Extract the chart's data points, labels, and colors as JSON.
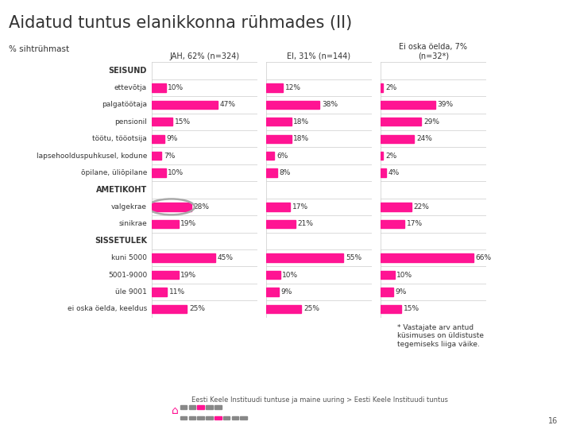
{
  "title": "Aidatud tuntus elanikkonna rühmades (II)",
  "subtitle": "% sihtrühmast",
  "col_headers": [
    "JAH, 62% (n=324)",
    "EI, 31% (n=144)",
    "Ei oska öelda, 7%\n(n=32*)"
  ],
  "categories": [
    "SEISUND",
    "ettevõtja",
    "palgatöötaja",
    "pensionil",
    "töötu, tööotsija",
    "lapsehoolduspuhkusel, kodune",
    "õpilane, üliõpilane",
    "AMETIKOHT",
    "valgekrae",
    "sinikrae",
    "SISSETULEK",
    "kuni 5000",
    "5001-9000",
    "üle 9001",
    "ei oska öelda, keeldus"
  ],
  "is_header": [
    true,
    false,
    false,
    false,
    false,
    false,
    false,
    true,
    false,
    false,
    true,
    false,
    false,
    false,
    false
  ],
  "col1_values": [
    null,
    10,
    47,
    15,
    9,
    7,
    10,
    null,
    28,
    19,
    null,
    45,
    19,
    11,
    25
  ],
  "col2_values": [
    null,
    12,
    38,
    18,
    18,
    6,
    8,
    null,
    17,
    21,
    null,
    55,
    10,
    9,
    25
  ],
  "col3_values": [
    null,
    2,
    39,
    29,
    24,
    2,
    4,
    null,
    22,
    17,
    null,
    66,
    10,
    9,
    15
  ],
  "col1_labels": [
    null,
    "10%",
    "47%",
    "15%",
    "9%",
    "7%",
    "10%",
    null,
    "28%",
    "19%",
    null,
    "45%",
    "19%",
    "11%",
    "25%"
  ],
  "col2_labels": [
    null,
    "12%",
    "38%",
    "18%",
    "18%",
    "6%",
    "8%",
    null,
    "17%",
    "21%",
    null,
    "55%",
    "10%",
    "9%",
    "25%"
  ],
  "col3_labels": [
    null,
    "2%",
    "39%",
    "29%",
    "24%",
    "2%",
    "4%",
    null,
    "22%",
    "17%",
    null,
    "66%",
    "10%",
    "9%",
    "15%"
  ],
  "bar_color": "#FF1493",
  "circle_row_idx": 8,
  "circle_col_idx": 0,
  "footnote": "* Vastajate arv antud\nküsimuses on üldistuste\ntegemiseks liiga väike.",
  "bg_color": "#ffffff",
  "text_color": "#333333",
  "grid_color": "#cccccc",
  "footer_text": "Eesti Keele Instituudi tuntuse ja maine uuring > Eesti Keele Instituudi tuntus",
  "page_num": "16"
}
